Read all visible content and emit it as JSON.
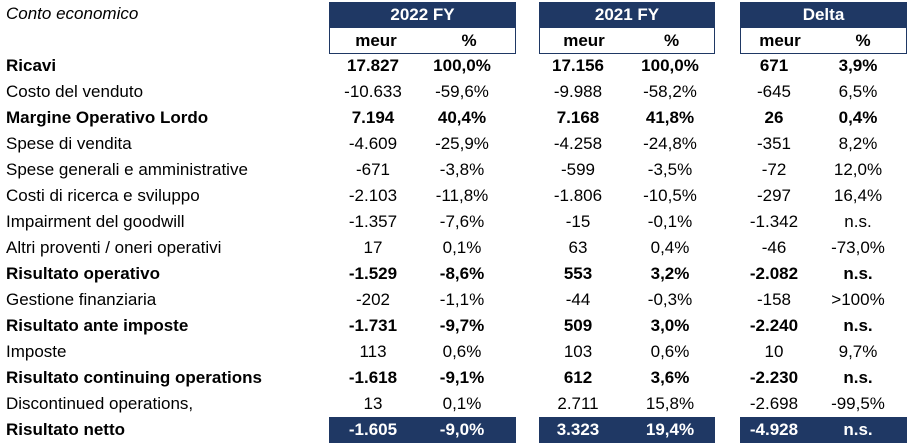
{
  "title": "Conto economico",
  "groups": [
    {
      "label": "2022 FY",
      "sub": [
        "meur",
        "%"
      ]
    },
    {
      "label": "2021 FY",
      "sub": [
        "meur",
        "%"
      ]
    },
    {
      "label": "Delta",
      "sub": [
        "meur",
        "%"
      ]
    }
  ],
  "rows": [
    {
      "label": "Ricavi",
      "bold": true,
      "values": [
        "17.827",
        "100,0%",
        "17.156",
        "100,0%",
        "671",
        "3,9%"
      ]
    },
    {
      "label": "Costo del venduto",
      "bold": false,
      "values": [
        "-10.633",
        "-59,6%",
        "-9.988",
        "-58,2%",
        "-645",
        "6,5%"
      ]
    },
    {
      "label": "Margine Operativo Lordo",
      "bold": true,
      "values": [
        "7.194",
        "40,4%",
        "7.168",
        "41,8%",
        "26",
        "0,4%"
      ]
    },
    {
      "label": "Spese di vendita",
      "bold": false,
      "values": [
        "-4.609",
        "-25,9%",
        "-4.258",
        "-24,8%",
        "-351",
        "8,2%"
      ]
    },
    {
      "label": "Spese generali e amministrative",
      "bold": false,
      "values": [
        "-671",
        "-3,8%",
        "-599",
        "-3,5%",
        "-72",
        "12,0%"
      ]
    },
    {
      "label": "Costi di ricerca e sviluppo",
      "bold": false,
      "values": [
        "-2.103",
        "-11,8%",
        "-1.806",
        "-10,5%",
        "-297",
        "16,4%"
      ]
    },
    {
      "label": "Impairment del goodwill",
      "bold": false,
      "values": [
        "-1.357",
        "-7,6%",
        "-15",
        "-0,1%",
        "-1.342",
        "n.s."
      ]
    },
    {
      "label": "Altri proventi / oneri operativi",
      "bold": false,
      "values": [
        "17",
        "0,1%",
        "63",
        "0,4%",
        "-46",
        "-73,0%"
      ]
    },
    {
      "label": "Risultato operativo",
      "bold": true,
      "values": [
        "-1.529",
        "-8,6%",
        "553",
        "3,2%",
        "-2.082",
        "n.s."
      ]
    },
    {
      "label": "Gestione finanziaria",
      "bold": false,
      "values": [
        "-202",
        "-1,1%",
        "-44",
        "-0,3%",
        "-158",
        ">100%"
      ]
    },
    {
      "label": "Risultato ante imposte",
      "bold": true,
      "values": [
        "-1.731",
        "-9,7%",
        "509",
        "3,0%",
        "-2.240",
        "n.s."
      ]
    },
    {
      "label": "Imposte",
      "bold": false,
      "values": [
        "113",
        "0,6%",
        "103",
        "0,6%",
        "10",
        "9,7%"
      ]
    },
    {
      "label": "Risultato continuing operations",
      "bold": true,
      "values": [
        "-1.618",
        "-9,1%",
        "612",
        "3,6%",
        "-2.230",
        "n.s."
      ]
    },
    {
      "label": "Discontinued operations,",
      "bold": false,
      "values": [
        "13",
        "0,1%",
        "2.711",
        "15,8%",
        "-2.698",
        "-99,5%"
      ]
    },
    {
      "label": "Risultato netto",
      "bold": true,
      "values": [
        "-1.605",
        "-9,0%",
        "3.323",
        "19,4%",
        "-4.928",
        "n.s."
      ]
    }
  ],
  "colors": {
    "header": "#1f3864",
    "header_text": "#ffffff"
  }
}
